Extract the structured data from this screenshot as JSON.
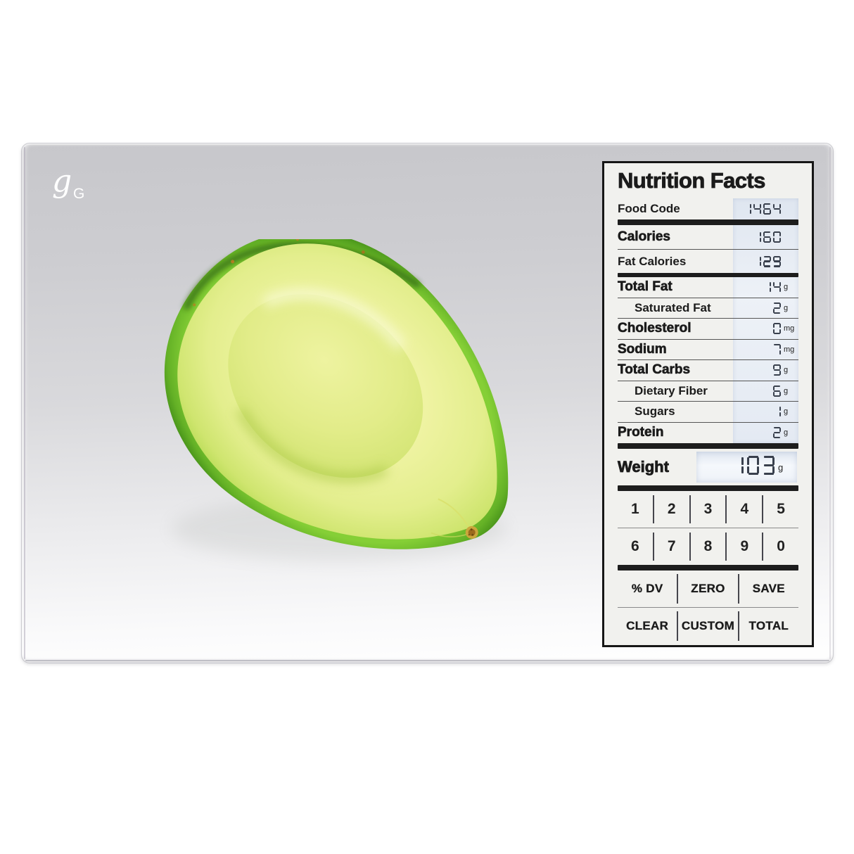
{
  "brand": {
    "logo_script": "g",
    "logo_letter": "G"
  },
  "panel": {
    "title": "Nutrition Facts",
    "rows": [
      {
        "label": "Food Code",
        "value": "1464",
        "unit": ""
      },
      {
        "label": "Calories",
        "value": "160",
        "unit": ""
      },
      {
        "label": "Fat Calories",
        "value": "129",
        "unit": ""
      },
      {
        "label": "Total Fat",
        "value": "14",
        "unit": "g"
      },
      {
        "label": "Saturated Fat",
        "value": "2",
        "unit": "g"
      },
      {
        "label": "Cholesterol",
        "value": "0",
        "unit": "mg"
      },
      {
        "label": "Sodium",
        "value": "7",
        "unit": "mg"
      },
      {
        "label": "Total Carbs",
        "value": "9",
        "unit": "g"
      },
      {
        "label": "Dietary Fiber",
        "value": "6",
        "unit": "g"
      },
      {
        "label": "Sugars",
        "value": "1",
        "unit": "g"
      },
      {
        "label": "Protein",
        "value": "2",
        "unit": "g"
      }
    ],
    "weight": {
      "label": "Weight",
      "value": "103",
      "unit": "g"
    },
    "keypad": [
      [
        "1",
        "2",
        "3",
        "4",
        "5"
      ],
      [
        "6",
        "7",
        "8",
        "9",
        "0"
      ]
    ],
    "function_keys": [
      [
        "% DV",
        "ZERO",
        "SAVE"
      ],
      [
        "CLEAR",
        "CUSTOM",
        "TOTAL"
      ]
    ]
  },
  "colors": {
    "lcd_band": "#e7edf5",
    "lcd_segment": "#39404d",
    "panel_bg": "#f1f1ee",
    "panel_border": "#161616",
    "scale_surface": "#cdcdd1",
    "avocado_skin": "#8ed43c",
    "avocado_skin_dark": "#2c6a0f",
    "avocado_flesh": "#eef2a0"
  }
}
